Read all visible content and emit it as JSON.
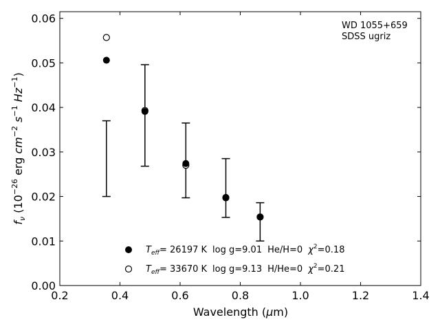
{
  "chart_data": {
    "type": "scatter",
    "xlabel": "Wavelength (μm)",
    "ylabel": "fν (10⁻²⁶ erg cm⁻² s⁻¹ Hz⁻¹)",
    "xlim": [
      0.2,
      1.4
    ],
    "ylim": [
      0.0,
      0.0615
    ],
    "xticks": [
      "0.2",
      "0.4",
      "0.6",
      "0.8",
      "1.0",
      "1.2",
      "1.4"
    ],
    "yticks": [
      "0.00",
      "0.01",
      "0.02",
      "0.03",
      "0.04",
      "0.05",
      "0.06"
    ],
    "grid": false,
    "annotation": [
      "WD 1055+659",
      "SDSS ugriz"
    ],
    "observed": {
      "x": [
        0.355,
        0.483,
        0.619,
        0.752,
        0.866
      ],
      "y": [
        0.0285,
        0.0382,
        0.0281,
        0.0219,
        0.0143
      ],
      "yerr_low": [
        0.0085,
        0.0114,
        0.0084,
        0.0066,
        0.0043
      ],
      "yerr_high": [
        0.0085,
        0.0114,
        0.0084,
        0.0066,
        0.0043
      ]
    },
    "series": [
      {
        "name": "Teff= 26197 K  log g=9.01  He/H=0  χ²=0.18",
        "marker": "filled-circle",
        "x": [
          0.355,
          0.483,
          0.619,
          0.752,
          0.866
        ],
        "y": [
          0.0506,
          0.0391,
          0.0274,
          0.0198,
          0.0154
        ]
      },
      {
        "name": "Teff= 33670 K  log g=9.13  H/He=0  χ²=0.21",
        "marker": "open-circle",
        "x": [
          0.355,
          0.483,
          0.619,
          0.752,
          0.866
        ],
        "y": [
          0.0557,
          0.0393,
          0.027,
          0.0197,
          0.0154
        ]
      }
    ],
    "legend": {
      "placement": "bottom-center",
      "entries": [
        {
          "teff": "= 26197 K",
          "logg": "log g=9.01",
          "comp": "He/H=0",
          "chi": "=0.18"
        },
        {
          "teff": "= 33670 K",
          "logg": "log g=9.13",
          "comp": "H/He=0",
          "chi": "=0.21"
        }
      ]
    }
  }
}
